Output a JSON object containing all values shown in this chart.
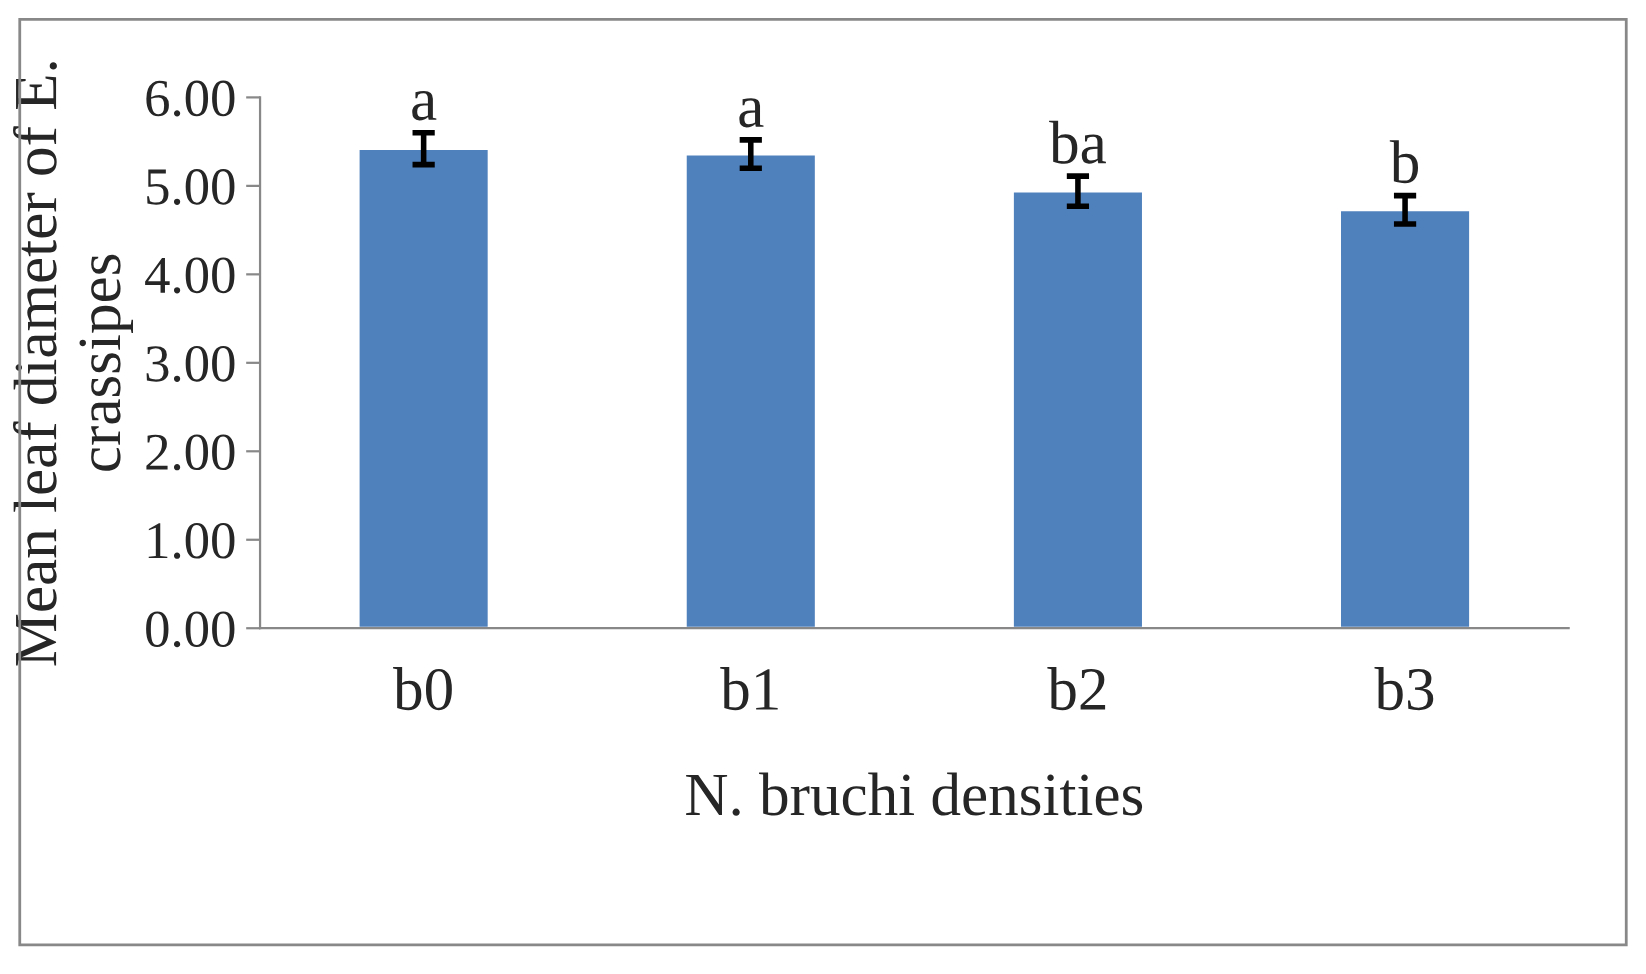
{
  "chart_data": {
    "type": "bar",
    "xlabel": "N. bruchi densities",
    "ylabel": "Mean leaf diameter of E. crassipes",
    "categories": [
      "b0",
      "b1",
      "b2",
      "b3"
    ],
    "series": [
      {
        "color": "#4f81bd",
        "values": [
          5.42,
          5.36,
          4.94,
          4.73
        ],
        "errors": [
          0.18,
          0.16,
          0.17,
          0.16
        ]
      }
    ],
    "ylim": [
      0,
      6
    ],
    "yticks": [
      {
        "value": 0,
        "label": "0.00"
      },
      {
        "value": 1,
        "label": "1.00"
      },
      {
        "value": 2,
        "label": "2.00"
      },
      {
        "value": 3,
        "label": "3.00"
      },
      {
        "value": 4,
        "label": "4.00"
      },
      {
        "value": 5,
        "label": "5.00"
      },
      {
        "value": 6,
        "label": "6.00"
      }
    ],
    "grid": false,
    "legend": false,
    "annotations": [
      {
        "text": "a",
        "x": "b0",
        "y": 5.6
      },
      {
        "text": "a",
        "x": "b1",
        "y": 5.52
      },
      {
        "text": "ba",
        "x": "b2",
        "y": 5.11
      },
      {
        "text": "b",
        "x": "b3",
        "y": 4.89
      }
    ]
  }
}
